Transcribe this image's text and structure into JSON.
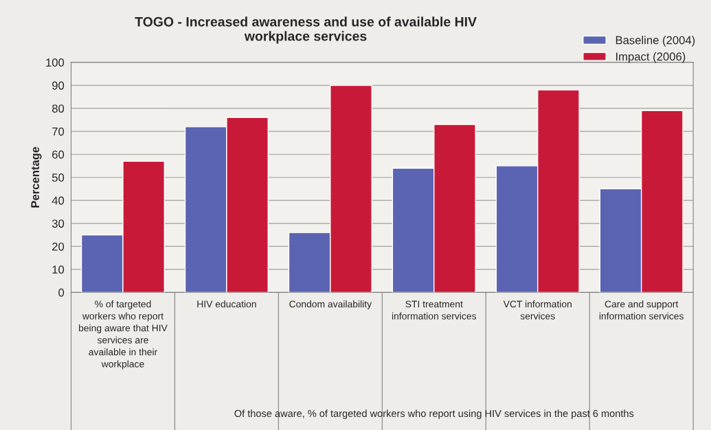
{
  "chart_data": {
    "type": "bar",
    "title": "TOGO - Increased awareness and use of available HIV workplace services",
    "ylabel": "Percentage",
    "categories": [
      "% of targeted workers who report being aware that HIV services are available in their workplace",
      "HIV education",
      "Condom availability",
      "STI treatment information services",
      "VCT information services",
      "Care and support information services"
    ],
    "series": [
      {
        "name": "Baseline (2004)",
        "color": "#5b64b2",
        "values": [
          25,
          72,
          26,
          54,
          55,
          45
        ]
      },
      {
        "name": "Impact (2006)",
        "color": "#c81a38",
        "values": [
          57,
          76,
          90,
          73,
          88,
          79
        ]
      }
    ],
    "annotations": [
      "Of those aware, % of targeted workers who report using HIV services in the past 6 months"
    ],
    "ylim": [
      0,
      100
    ],
    "yticks": [
      0,
      10,
      20,
      30,
      40,
      50,
      60,
      70,
      80,
      90,
      100
    ],
    "grid": "y",
    "legend": "top right"
  }
}
